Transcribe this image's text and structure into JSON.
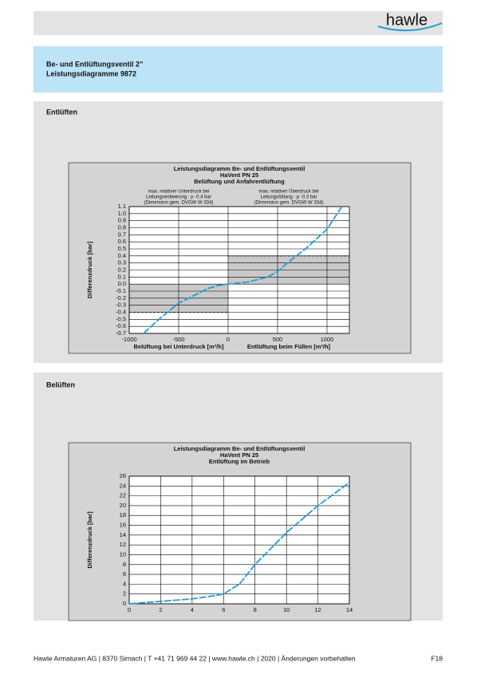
{
  "header": {
    "logo": "hawle",
    "title": [
      "Be- und Entlüftungsventil 2”",
      "Leistungsdiagramme 9872"
    ]
  },
  "sections": [
    "Entlüften",
    "Belüften"
  ],
  "chart_data": [
    {
      "type": "line",
      "title": [
        "Leistungsdiagramm Be- und Entlüftungsventil",
        "HaVent PN 25",
        "Belüftung und Anfahrentlüftung"
      ],
      "annotations": [
        [
          "max. relativer Unterdruck bei",
          "Leitungsentleerung : p -0.4 bar",
          "(Dimension gem. DVGW W 334)"
        ],
        [
          "max. relativer Überdruck bei",
          "Leitungsfüllung : p -0.3 bar",
          "(Dimension gem. DVGW W 334)"
        ]
      ],
      "y_label": "Differenzdruck [bar]",
      "x_label": [
        "Belüftung bei Unterdruck [m³/h]",
        "Entlüftung beim Füllen [m³/h]"
      ],
      "x": [
        -855,
        -700,
        -500,
        -300,
        -200,
        -100,
        0,
        200,
        400,
        500,
        600,
        800,
        1000,
        1150
      ],
      "values": [
        -0.7,
        -0.5,
        -0.27,
        -0.13,
        -0.06,
        -0.02,
        0,
        0.03,
        0.1,
        0.18,
        0.3,
        0.52,
        0.78,
        1.1
      ],
      "color": "#1e9fd6",
      "xlim": [
        -1000,
        1226
      ],
      "ylim": [
        -0.7,
        1.1
      ],
      "xticks": [
        -1000,
        -500,
        0,
        500,
        1000
      ],
      "yticks": [
        1.1,
        {
          "value": 1,
          "label": "1.0"
        },
        0.9,
        0.8,
        0.7,
        0.6,
        0.5,
        0.4,
        0.3,
        0.2,
        0.1,
        {
          "value": 0,
          "label": "0.0"
        },
        -0.1,
        -0.2,
        -0.3,
        -0.4,
        -0.5,
        -0.6,
        -0.7
      ],
      "bands": [
        {
          "x": [
            -1000,
            0
          ],
          "y": [
            -0.4,
            0
          ]
        },
        {
          "x": [
            0,
            1226
          ],
          "y": [
            0,
            0.4
          ]
        }
      ],
      "reference_lines": [
        {
          "y": -0.4,
          "x": [
            -1000,
            0
          ]
        },
        {
          "y": 0.4,
          "x": [
            0,
            1226
          ]
        }
      ],
      "grid": true
    },
    {
      "type": "line",
      "title": [
        "Leistungsdiagramm Be- und Entlüftungsventil",
        "HaVent PN 25",
        "Entlüftung im Betrieb"
      ],
      "y_label": "Differenzdruck [bar]",
      "x": [
        0,
        2,
        4,
        5.5,
        6,
        7,
        8,
        10,
        12,
        14
      ],
      "values": [
        0,
        0.5,
        1,
        1.7,
        2,
        4,
        8,
        14.5,
        20,
        24.7
      ],
      "color": "#1e9fd6",
      "xlim": [
        0,
        14
      ],
      "ylim": [
        0,
        26
      ],
      "xticks": [
        0,
        2,
        4,
        6,
        8,
        10,
        12,
        14
      ],
      "yticks": [
        0,
        2,
        4,
        6,
        8,
        10,
        12,
        14,
        16,
        18,
        20,
        22,
        24,
        26
      ],
      "grid": true
    }
  ],
  "footer": {
    "text": "Hawle Armaturen AG | 8370 Sirnach | T +41 71 969 44 22 | www.hawle.ch | 2020 | Änderungen vorbehalten",
    "page": "F18"
  }
}
